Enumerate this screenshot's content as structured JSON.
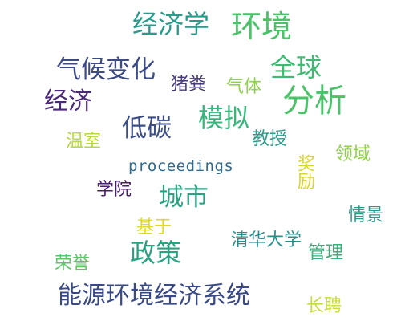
{
  "words": [
    {
      "text": "经济学",
      "color": "#2a9a8a"
    },
    {
      "text": "环境",
      "color": "#4cc26a"
    },
    {
      "text": "气候变化",
      "color": "#3c4a86"
    },
    {
      "text": "全球",
      "color": "#3fba72"
    },
    {
      "text": "猪粪",
      "color": "#463a78"
    },
    {
      "text": "气体",
      "color": "#8fd24a"
    },
    {
      "text": "分析",
      "color": "#4cc26a"
    },
    {
      "text": "经济",
      "color": "#4a2a78"
    },
    {
      "text": "模拟",
      "color": "#36b77c"
    },
    {
      "text": "低碳",
      "color": "#3b4d88"
    },
    {
      "text": "教授",
      "color": "#2f9a8a"
    },
    {
      "text": "温室",
      "color": "#b6d840"
    },
    {
      "text": "领域",
      "color": "#8fd24a"
    },
    {
      "text": "proceedings",
      "color": "#2e6a8e"
    },
    {
      "text": "奖励",
      "color": "#d8d62a"
    },
    {
      "text": "学院",
      "color": "#4a1e6e"
    },
    {
      "text": "城市",
      "color": "#2aa382"
    },
    {
      "text": "情景",
      "color": "#2a9a8a"
    },
    {
      "text": "基于",
      "color": "#e2d92a"
    },
    {
      "text": "清华大学",
      "color": "#2a8e8c"
    },
    {
      "text": "政策",
      "color": "#2aa382"
    },
    {
      "text": "管理",
      "color": "#3aaf7a"
    },
    {
      "text": "荣誉",
      "color": "#5ac864"
    },
    {
      "text": "能源环境经济系统",
      "color": "#3a4a86"
    },
    {
      "text": "长聘",
      "color": "#c8dc3a"
    }
  ]
}
